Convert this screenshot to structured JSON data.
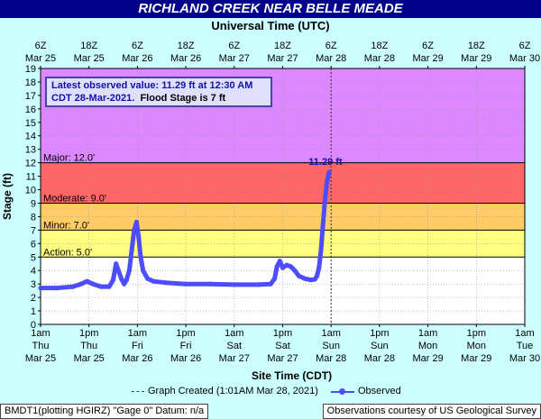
{
  "header": {
    "title": "RICHLAND CREEK NEAR BELLE MEADE",
    "top_axis_title": "Universal Time (UTC)"
  },
  "info": {
    "line1": "Latest observed value: 11.29 ft at 12:30 AM",
    "line2": "CDT 28-Mar-2021.",
    "line2b": "Flood Stage is 7 ft"
  },
  "legend": {
    "graph_created": "Graph Created (1:01AM Mar 28, 2021)",
    "observed": "Observed"
  },
  "footer": {
    "left": "BMDT1(plotting HGIRZ) \"Gage 0\" Datum: n/a",
    "right": "Observations courtesy of US Geological Survey"
  },
  "chart_data": {
    "type": "line",
    "xlabel": "Site Time (CDT)",
    "ylabel": "Stage (ft)",
    "ylim": [
      0,
      19
    ],
    "yticks": [
      0,
      1,
      2,
      3,
      4,
      5,
      6,
      7,
      8,
      9,
      10,
      11,
      12,
      13,
      14,
      15,
      16,
      17,
      18,
      19
    ],
    "x_ticks_bottom": [
      {
        "t": "1am",
        "d": "Thu",
        "m": "Mar 25"
      },
      {
        "t": "1pm",
        "d": "Thu",
        "m": "Mar 25"
      },
      {
        "t": "1am",
        "d": "Fri",
        "m": "Mar 26"
      },
      {
        "t": "1pm",
        "d": "Fri",
        "m": "Mar 26"
      },
      {
        "t": "1am",
        "d": "Sat",
        "m": "Mar 27"
      },
      {
        "t": "1pm",
        "d": "Sat",
        "m": "Mar 27"
      },
      {
        "t": "1am",
        "d": "Sun",
        "m": "Mar 28"
      },
      {
        "t": "1pm",
        "d": "Sun",
        "m": "Mar 28"
      },
      {
        "t": "1am",
        "d": "Mon",
        "m": "Mar 29"
      },
      {
        "t": "1pm",
        "d": "Mon",
        "m": "Mar 29"
      },
      {
        "t": "1am",
        "d": "Tue",
        "m": "Mar 30"
      }
    ],
    "x_ticks_top": [
      {
        "t": "6Z",
        "m": "Mar 25"
      },
      {
        "t": "18Z",
        "m": "Mar 25"
      },
      {
        "t": "6Z",
        "m": "Mar 26"
      },
      {
        "t": "18Z",
        "m": "Mar 26"
      },
      {
        "t": "6Z",
        "m": "Mar 27"
      },
      {
        "t": "18Z",
        "m": "Mar 27"
      },
      {
        "t": "6Z",
        "m": "Mar 28"
      },
      {
        "t": "18Z",
        "m": "Mar 28"
      },
      {
        "t": "6Z",
        "m": "Mar 29"
      },
      {
        "t": "18Z",
        "m": "Mar 29"
      },
      {
        "t": "6Z",
        "m": "Mar 30"
      }
    ],
    "x_range_hours": [
      0,
      120
    ],
    "graph_created_hour": 72.0,
    "flood_categories": [
      {
        "name": "Action",
        "label": "Action: 5.0'",
        "from": 5,
        "to": 7,
        "color": "#ffff80"
      },
      {
        "name": "Minor",
        "label": "Minor: 7.0'",
        "from": 7,
        "to": 9,
        "color": "#ffcc66"
      },
      {
        "name": "Moderate",
        "label": "Moderate: 9.0'",
        "from": 9,
        "to": 12,
        "color": "#ff6666"
      },
      {
        "name": "Major",
        "label": "Major: 12.0'",
        "from": 12,
        "to": 19,
        "color": "#dd88ff"
      }
    ],
    "latest_label": "11.29 ft",
    "series": [
      {
        "name": "Observed",
        "color": "#4d4dff",
        "points": [
          [
            0,
            2.7
          ],
          [
            4,
            2.7
          ],
          [
            8,
            2.8
          ],
          [
            10,
            3.0
          ],
          [
            11.5,
            3.2
          ],
          [
            13,
            3.0
          ],
          [
            15,
            2.8
          ],
          [
            17,
            2.8
          ],
          [
            18,
            3.3
          ],
          [
            18.7,
            4.5
          ],
          [
            19.3,
            4.0
          ],
          [
            20,
            3.4
          ],
          [
            20.7,
            3.0
          ],
          [
            21.3,
            3.3
          ],
          [
            22,
            4.0
          ],
          [
            22.6,
            5.5
          ],
          [
            23.2,
            7.0
          ],
          [
            23.8,
            7.6
          ],
          [
            24.3,
            6.5
          ],
          [
            24.8,
            5.0
          ],
          [
            25.4,
            4.0
          ],
          [
            26.5,
            3.4
          ],
          [
            28,
            3.2
          ],
          [
            31,
            3.1
          ],
          [
            36,
            3.0
          ],
          [
            42,
            3.0
          ],
          [
            48,
            2.95
          ],
          [
            54,
            2.95
          ],
          [
            57,
            3.0
          ],
          [
            58,
            3.4
          ],
          [
            58.6,
            4.3
          ],
          [
            59.3,
            4.7
          ],
          [
            60,
            4.2
          ],
          [
            61,
            4.4
          ],
          [
            62,
            4.3
          ],
          [
            63,
            4.0
          ],
          [
            64,
            3.6
          ],
          [
            65.5,
            3.4
          ],
          [
            67,
            3.3
          ],
          [
            68,
            3.35
          ],
          [
            68.5,
            3.6
          ],
          [
            69,
            4.2
          ],
          [
            69.5,
            5.5
          ],
          [
            70,
            7.5
          ],
          [
            70.5,
            9.3
          ],
          [
            71,
            10.6
          ],
          [
            71.5,
            11.29
          ]
        ]
      }
    ]
  }
}
